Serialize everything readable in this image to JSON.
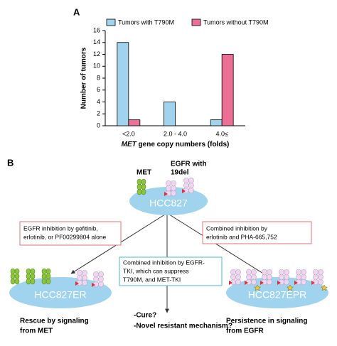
{
  "chart_data": {
    "type": "bar",
    "panel_label": "A",
    "ylabel": "Number of tumors",
    "xlabel_emphasis": "MET",
    "xlabel": "gene copy numbers (folds)",
    "categories": [
      "<2.0",
      "2.0 - 4.0",
      "4.0≤"
    ],
    "series": [
      {
        "name": "Tumors with T790M",
        "color": "#9fd3ee",
        "values": [
          14,
          4,
          1
        ]
      },
      {
        "name": "Tumors without T790M",
        "color": "#ee6f95",
        "values": [
          1,
          0,
          12
        ]
      }
    ],
    "ylim": [
      0,
      16
    ],
    "yticks": [
      0,
      2,
      4,
      6,
      8,
      10,
      12,
      14,
      16
    ],
    "grid": false,
    "legend": "top"
  },
  "diagram": {
    "panel_label": "B",
    "labels": {
      "met": "MET",
      "egfr": [
        "EGFR with",
        "19del"
      ]
    },
    "cells": {
      "parent": "HCC827",
      "left": "HCC827ER",
      "right": "HCC827EPR"
    },
    "boxes": {
      "left": [
        "EGFR inhibition by gefitinib,",
        "erlotinib, or PF00299804 alone"
      ],
      "right": [
        "Combined inhibition by",
        "erlotinib and PHA-665,752"
      ],
      "middle": [
        "Combined inhibition by EGFR-",
        "TKI, which can suppress",
        "T790M, and MET-TKI"
      ]
    },
    "outcomes": {
      "left": [
        "Rescue by signaling",
        "from MET"
      ],
      "middle": [
        "-Cure?",
        "-Novel resistant mechanism?"
      ],
      "right": [
        "Persistence in signaling",
        "from EGFR"
      ]
    }
  }
}
